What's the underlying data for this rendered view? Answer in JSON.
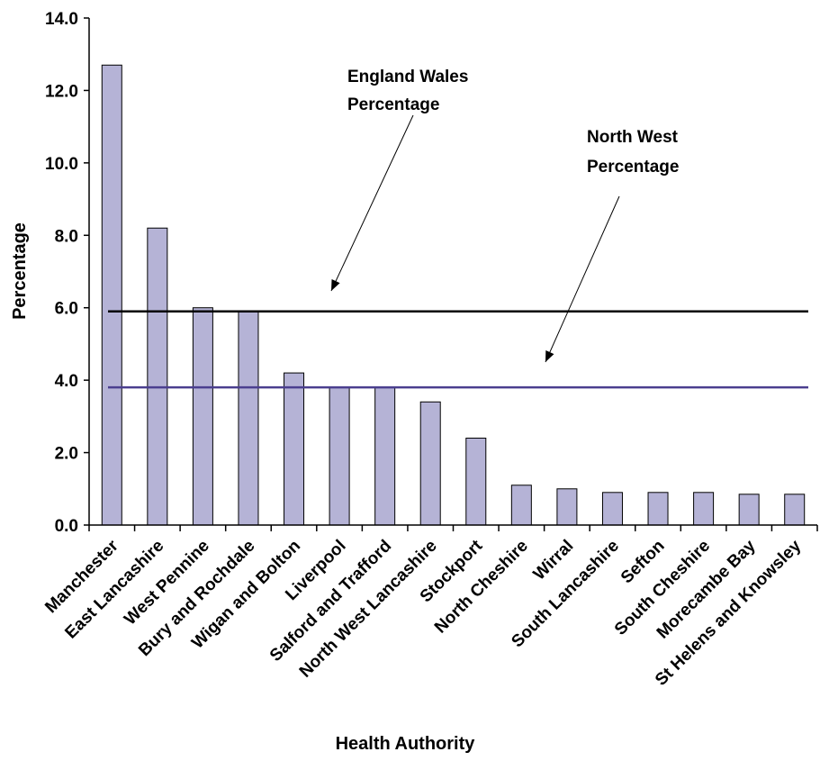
{
  "chart_data": {
    "type": "bar",
    "title": "",
    "xlabel": "Health Authority",
    "ylabel": "Percentage",
    "ylim": [
      0,
      14
    ],
    "yticks": [
      "0.0",
      "2.0",
      "4.0",
      "6.0",
      "8.0",
      "10.0",
      "12.0",
      "14.0"
    ],
    "grid": false,
    "legend": "none",
    "categories": [
      "Manchester",
      "East Lancashire",
      "West Pennine",
      "Bury and Rochdale",
      "Wigan and Bolton",
      "Liverpool",
      "Salford and Trafford",
      "North West Lancashire",
      "Stockport",
      "North Cheshire",
      "Wirral",
      "South Lancashire",
      "Sefton",
      "South Cheshire",
      "Morecambe Bay",
      "St Helens and Knowsley"
    ],
    "values": [
      12.7,
      8.2,
      6.0,
      5.9,
      4.2,
      3.8,
      3.8,
      3.4,
      2.4,
      1.1,
      1.0,
      0.9,
      0.9,
      0.9,
      0.85,
      0.85
    ],
    "reference_lines": [
      {
        "value": 5.9,
        "color": "#000000",
        "label_line1": "England Wales",
        "label_line2": "Percentage"
      },
      {
        "value": 3.8,
        "color": "#4b3f8f",
        "label_line1": "North West",
        "label_line2": "Percentage"
      }
    ],
    "bar_color": "#b5b3d6",
    "bar_edge_color": "#000000"
  }
}
